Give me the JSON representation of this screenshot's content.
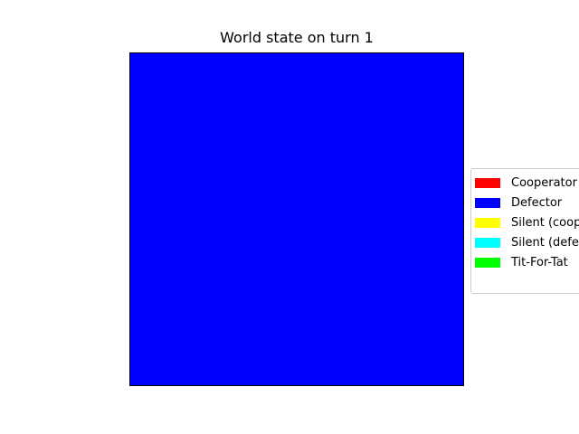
{
  "chart_data": {
    "type": "heatmap",
    "title": "World state on turn 1",
    "xlabel": "",
    "ylabel": "",
    "grid": false,
    "legend_position": "center-right",
    "grid_state": [
      [
        "Defector"
      ]
    ],
    "legend": [
      {
        "label": "Cooperator",
        "color": "#ff0000"
      },
      {
        "label": "Defector",
        "color": "#0000ff"
      },
      {
        "label": "Silent (cooperator)",
        "color": "#ffff00"
      },
      {
        "label": "Silent (defector)",
        "color": "#00ffff"
      },
      {
        "label": "Tit-For-Tat",
        "color": "#00ff00"
      }
    ]
  }
}
